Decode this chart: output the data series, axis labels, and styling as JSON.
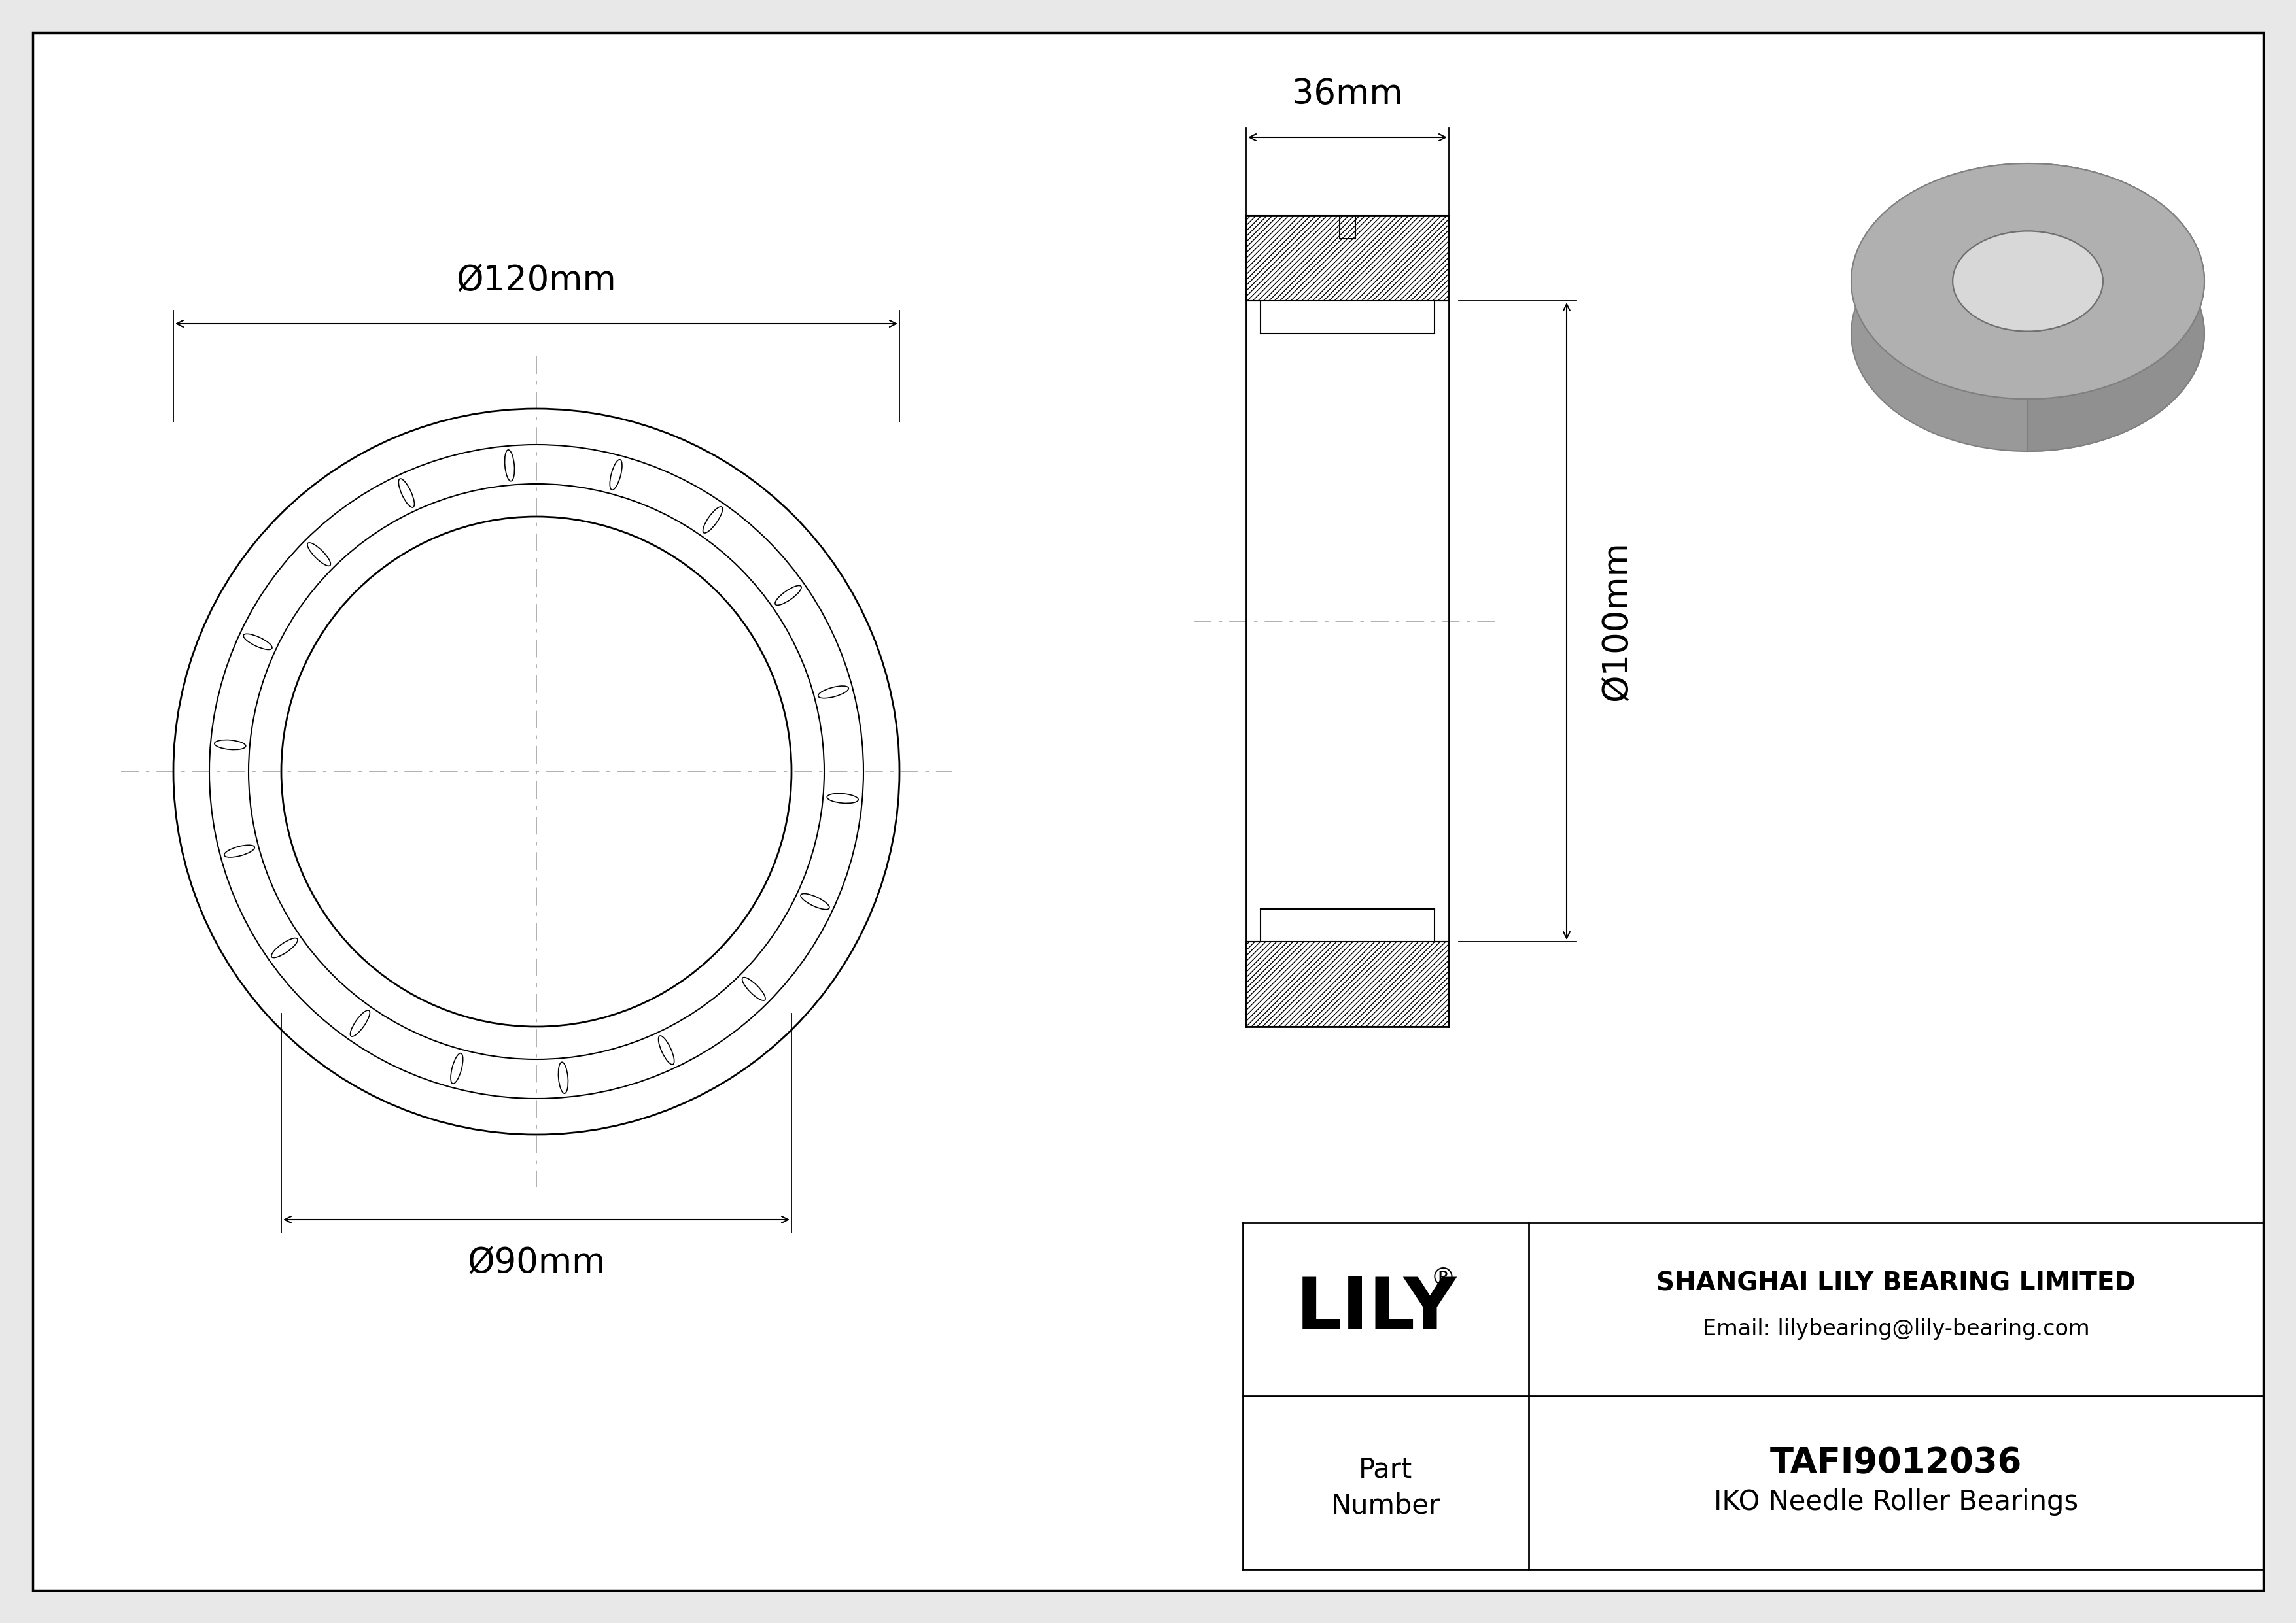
{
  "bg_color": "#e8e8e8",
  "drawing_bg": "#ffffff",
  "line_color": "#000000",
  "center_line_color": "#aaaaaa",
  "title": "TAFI9012036",
  "subtitle": "IKO Needle Roller Bearings",
  "company": "SHANGHAI LILY BEARING LIMITED",
  "email": "Email: lilybearing@lily-bearing.com",
  "brand": "LILY",
  "part_label": "Part\nNumber",
  "dim_od_text": "Ø120mm",
  "dim_id_text": "Ø90mm",
  "dim_width_text": "36mm",
  "dim_height_text": "Ø100mm"
}
